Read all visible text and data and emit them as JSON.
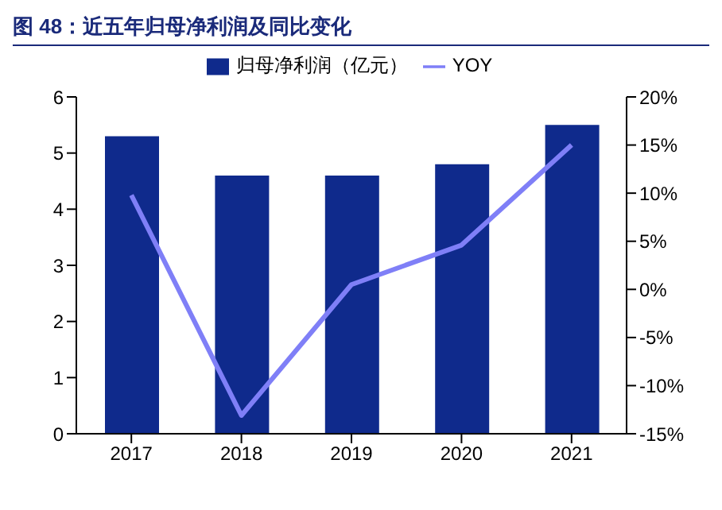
{
  "chart_data": {
    "type": "bar",
    "title": "图 48：近五年归母净利润及同比变化",
    "categories": [
      "2017",
      "2018",
      "2019",
      "2020",
      "2021"
    ],
    "series": [
      {
        "name": "归母净利润（亿元）",
        "color": "#0f2a8c",
        "values": [
          5.3,
          4.6,
          4.6,
          4.8,
          5.5
        ]
      },
      {
        "name": "YOY",
        "type": "line",
        "axis": "y2",
        "color": "#7f7ff7",
        "values": [
          9.8,
          -13.1,
          0.5,
          4.6,
          15.0
        ]
      }
    ],
    "ylim": [
      0,
      6
    ],
    "yticks": [
      0,
      1,
      2,
      3,
      4,
      5,
      6
    ],
    "y2lim": [
      -15,
      20
    ],
    "y2ticks": [
      {
        "value": -15,
        "label": "-15%"
      },
      {
        "value": -10,
        "label": "-10%"
      },
      {
        "value": -5,
        "label": "-5%"
      },
      {
        "value": 0,
        "label": "0%"
      },
      {
        "value": 5,
        "label": "5%"
      },
      {
        "value": 10,
        "label": "10%"
      },
      {
        "value": 15,
        "label": "15%"
      },
      {
        "value": 20,
        "label": "20%"
      }
    ],
    "legend": "top",
    "grid": false,
    "marker": "none"
  }
}
